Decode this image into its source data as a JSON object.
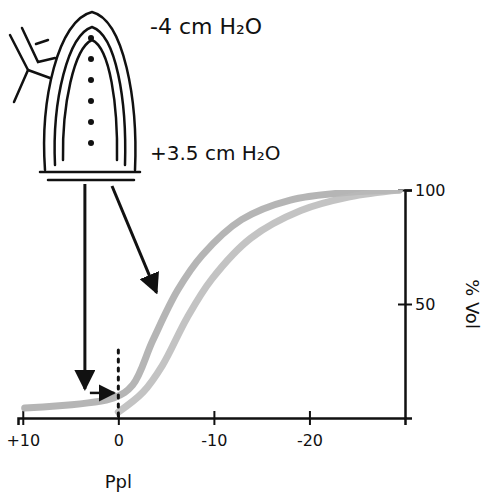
{
  "chart_data": {
    "type": "line",
    "x_label": "Ppl",
    "y_label": "% Vol",
    "xlim": [
      10.5,
      -30
    ],
    "xticks": [
      {
        "value": 10,
        "label": "+10"
      },
      0,
      -10,
      -20
    ],
    "ylim": [
      0,
      100
    ],
    "yticks": [
      50,
      100
    ],
    "grid": false,
    "series": [
      {
        "color": "#a8a8a8",
        "line_style": "solid",
        "x": [
          9.8,
          0.5,
          -1.5,
          -3.6,
          -6.2,
          -8.8,
          -12.9,
          -18,
          -24.2,
          -29.4
        ],
        "values": [
          4.4,
          8.8,
          14.5,
          34,
          56,
          71.5,
          87,
          95.6,
          99,
          100
        ]
      },
      {
        "color": "#b8b8b8",
        "line_style": "solid",
        "x": [
          0,
          -2.6,
          -4.6,
          -7.2,
          -9.8,
          -13.9,
          -19.1,
          -24.2,
          -29.4
        ],
        "values": [
          2.6,
          11.4,
          23,
          44,
          61,
          79,
          91,
          97,
          100
        ]
      }
    ],
    "annotations": [
      {
        "text": "-4 cm H₂O",
        "x": -4,
        "y": 55
      },
      {
        "text": "+3.5 cm H₂O",
        "x": 3.5,
        "y": 11
      }
    ]
  }
}
